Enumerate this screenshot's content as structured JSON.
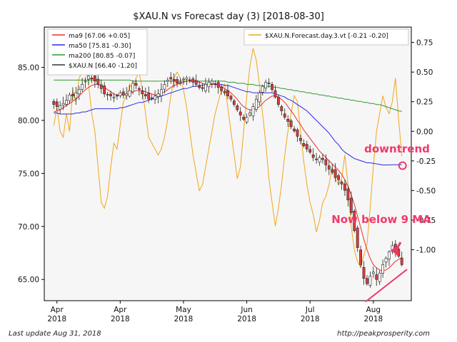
{
  "chart_data": {
    "type": "candlestick+line",
    "title": "$XAU.N vs Forecast day (3)  [2018-08-30]",
    "left_axis": {
      "ylim": [
        63.0,
        88.8
      ],
      "ticks": [
        65,
        70,
        75,
        80,
        85
      ],
      "tick_labels": [
        "65.00",
        "70.00",
        "75.00",
        "80.00",
        "85.00"
      ]
    },
    "right_axis": {
      "ylim": [
        -1.43,
        0.88
      ],
      "ticks": [
        0.75,
        0.5,
        0.25,
        0.0,
        -0.25,
        -0.5,
        -0.75,
        -1.0
      ],
      "tick_labels": [
        "0.75",
        "0.50",
        "0.25",
        "0.00",
        "-0.25",
        "-0.50",
        "-0.75",
        "-1.00"
      ]
    },
    "x_ticks": [
      {
        "label": "Apr\n2018",
        "t": 1
      },
      {
        "label": "Apr\n2018",
        "t": 21
      },
      {
        "label": "May\n2018",
        "t": 41
      },
      {
        "label": "Jun\n2018",
        "t": 61
      },
      {
        "label": "Jul\n2018",
        "t": 81
      },
      {
        "label": "Aug\n2018",
        "t": 101
      }
    ],
    "x_range": [
      -3,
      113
    ],
    "grid": false,
    "legend_left": {
      "placement": "top-left",
      "entries": [
        {
          "label": "ma9 [67.06 +0.05]",
          "color": "#e8302a"
        },
        {
          "label": "ma50 [75.81 -0.30]",
          "color": "#2a2ae8"
        },
        {
          "label": "ma200 [80.85 -0.07]",
          "color": "#2e9a2e"
        },
        {
          "label": "$XAU.N [66.40 -1.20]",
          "color": "#333333"
        }
      ]
    },
    "legend_right": {
      "placement": "top-right",
      "entries": [
        {
          "label": "$XAU.N.Forecast.day.3.vt [-0.21 -0.20]",
          "color": "#f2a51c"
        }
      ]
    },
    "closes": [
      81.5,
      81.3,
      81.4,
      81.6,
      81.9,
      82.4,
      82.3,
      82.6,
      82.9,
      83.4,
      83.7,
      84.2,
      83.9,
      83.7,
      83.4,
      83.0,
      82.5,
      82.4,
      82.3,
      82.2,
      82.3,
      82.6,
      82.4,
      82.5,
      82.8,
      83.5,
      83.3,
      83.0,
      82.5,
      82.3,
      82.0,
      82.1,
      82.3,
      82.5,
      82.9,
      83.4,
      83.8,
      83.9,
      83.7,
      83.5,
      83.6,
      83.9,
      84.0,
      83.8,
      83.6,
      83.4,
      83.1,
      83.0,
      83.4,
      83.6,
      83.7,
      83.4,
      83.1,
      82.8,
      82.6,
      82.3,
      82.0,
      81.5,
      81.0,
      80.5,
      80.1,
      80.3,
      80.7,
      81.3,
      82.0,
      82.6,
      83.2,
      83.6,
      83.5,
      82.9,
      82.2,
      81.5,
      80.9,
      80.3,
      79.9,
      79.4,
      79.0,
      78.5,
      78.1,
      77.6,
      77.3,
      77.0,
      76.5,
      76.3,
      76.5,
      76.3,
      75.8,
      75.4,
      75.1,
      74.6,
      74.4,
      74.0,
      73.4,
      72.5,
      71.3,
      69.6,
      68.0,
      66.4,
      65.1,
      64.6,
      65.3,
      65.7,
      65.0,
      65.6,
      66.4,
      67.0,
      67.6,
      68.2,
      67.6,
      67.2,
      66.4
    ],
    "ma9": [
      80.8,
      80.9,
      81.0,
      81.2,
      81.4,
      81.6,
      81.8,
      82.0,
      82.3,
      82.6,
      82.9,
      83.1,
      83.3,
      83.4,
      83.4,
      83.3,
      83.1,
      82.9,
      82.7,
      82.5,
      82.4,
      82.4,
      82.4,
      82.4,
      82.5,
      82.7,
      82.8,
      82.8,
      82.8,
      82.7,
      82.6,
      82.5,
      82.4,
      82.4,
      82.5,
      82.7,
      82.9,
      83.1,
      83.3,
      83.4,
      83.5,
      83.6,
      83.7,
      83.7,
      83.7,
      83.7,
      83.6,
      83.5,
      83.4,
      83.4,
      83.4,
      83.4,
      83.3,
      83.2,
      83.0,
      82.8,
      82.6,
      82.3,
      82.0,
      81.6,
      81.3,
      81.1,
      81.0,
      81.0,
      81.1,
      81.3,
      81.6,
      81.9,
      82.1,
      82.3,
      82.3,
      82.2,
      82.0,
      81.7,
      81.3,
      80.9,
      80.5,
      80.0,
      79.6,
      79.1,
      78.7,
      78.3,
      77.9,
      77.5,
      77.1,
      76.8,
      76.5,
      76.2,
      75.9,
      75.6,
      75.3,
      74.9,
      74.4,
      73.8,
      73.0,
      72.1,
      71.0,
      69.9,
      68.8,
      67.8,
      67.0,
      66.4,
      66.1,
      65.9,
      65.8,
      65.9,
      66.1,
      66.4,
      66.7,
      66.9,
      67.06
    ],
    "ma50": [
      80.7,
      80.7,
      80.6,
      80.6,
      80.6,
      80.6,
      80.6,
      80.7,
      80.7,
      80.8,
      80.8,
      80.9,
      81.0,
      81.1,
      81.1,
      81.1,
      81.1,
      81.1,
      81.1,
      81.1,
      81.1,
      81.2,
      81.2,
      81.3,
      81.4,
      81.5,
      81.6,
      81.7,
      81.7,
      81.8,
      81.9,
      82.0,
      82.1,
      82.2,
      82.3,
      82.4,
      82.5,
      82.6,
      82.7,
      82.8,
      82.9,
      83.0,
      83.0,
      83.1,
      83.2,
      83.2,
      83.3,
      83.3,
      83.4,
      83.4,
      83.4,
      83.4,
      83.4,
      83.4,
      83.3,
      83.3,
      83.2,
      83.1,
      83.0,
      82.9,
      82.8,
      82.7,
      82.7,
      82.6,
      82.6,
      82.6,
      82.6,
      82.6,
      82.6,
      82.6,
      82.5,
      82.4,
      82.3,
      82.2,
      82.0,
      81.9,
      81.7,
      81.5,
      81.3,
      81.1,
      80.9,
      80.6,
      80.3,
      80.0,
      79.7,
      79.4,
      79.1,
      78.8,
      78.4,
      78.0,
      77.7,
      77.3,
      77.0,
      76.8,
      76.6,
      76.4,
      76.3,
      76.2,
      76.1,
      76.0,
      76.0,
      75.95,
      75.9,
      75.85,
      75.8,
      75.8,
      75.8,
      75.81,
      75.81,
      75.81,
      75.81
    ],
    "ma200": [
      83.8,
      83.8,
      83.8,
      83.8,
      83.8,
      83.8,
      83.8,
      83.8,
      83.8,
      83.8,
      83.8,
      83.8,
      83.8,
      83.8,
      83.8,
      83.8,
      83.8,
      83.8,
      83.8,
      83.8,
      83.8,
      83.8,
      83.8,
      83.8,
      83.8,
      83.7,
      83.7,
      83.7,
      83.7,
      83.7,
      83.7,
      83.7,
      83.7,
      83.7,
      83.7,
      83.7,
      83.7,
      83.7,
      83.7,
      83.7,
      83.7,
      83.7,
      83.7,
      83.7,
      83.7,
      83.7,
      83.7,
      83.7,
      83.7,
      83.7,
      83.7,
      83.7,
      83.7,
      83.7,
      83.7,
      83.6,
      83.6,
      83.6,
      83.5,
      83.5,
      83.5,
      83.4,
      83.4,
      83.4,
      83.3,
      83.3,
      83.3,
      83.2,
      83.2,
      83.2,
      83.1,
      83.1,
      83.0,
      83.0,
      82.9,
      82.9,
      82.8,
      82.8,
      82.7,
      82.7,
      82.6,
      82.6,
      82.5,
      82.5,
      82.4,
      82.4,
      82.3,
      82.3,
      82.2,
      82.2,
      82.1,
      82.1,
      82.0,
      82.0,
      81.9,
      81.9,
      81.8,
      81.8,
      81.7,
      81.7,
      81.6,
      81.6,
      81.5,
      81.5,
      81.4,
      81.3,
      81.2,
      81.1,
      81.0,
      80.9,
      80.85
    ],
    "forecast": [
      0.05,
      0.2,
      0.0,
      -0.05,
      0.15,
      0.0,
      0.35,
      0.25,
      0.45,
      0.5,
      0.55,
      0.4,
      0.15,
      0.0,
      -0.3,
      -0.6,
      -0.65,
      -0.55,
      -0.3,
      -0.1,
      -0.15,
      0.05,
      0.25,
      0.3,
      0.4,
      0.35,
      0.45,
      0.5,
      0.35,
      0.15,
      -0.05,
      -0.1,
      -0.15,
      -0.2,
      -0.15,
      -0.05,
      0.1,
      0.3,
      0.45,
      0.5,
      0.45,
      0.35,
      0.2,
      0.0,
      -0.2,
      -0.35,
      -0.5,
      -0.45,
      -0.3,
      -0.15,
      0.0,
      0.15,
      0.25,
      0.35,
      0.4,
      0.2,
      0.0,
      -0.2,
      -0.4,
      -0.3,
      0.0,
      0.3,
      0.55,
      0.7,
      0.6,
      0.4,
      0.15,
      -0.1,
      -0.4,
      -0.6,
      -0.8,
      -0.65,
      -0.45,
      -0.2,
      0.0,
      0.15,
      0.3,
      0.25,
      0.0,
      -0.25,
      -0.45,
      -0.6,
      -0.7,
      -0.85,
      -0.75,
      -0.6,
      -0.55,
      -0.45,
      -0.3,
      -0.4,
      -0.45,
      -0.4,
      -0.2,
      -0.45,
      -0.8,
      -1.0,
      -1.1,
      -1.15,
      -1.05,
      -0.95,
      -0.65,
      -0.3,
      0.0,
      0.15,
      0.3,
      0.2,
      0.15,
      0.25,
      0.45,
      0.1,
      -0.21
    ]
  },
  "annotations": {
    "downtrend_label": "downtrend",
    "below_ma_label": "Now below 9 MA",
    "accent_color": "#f0386b"
  },
  "footer": {
    "left": "Last update Aug 31, 2018",
    "right": "http://peakprosperity.com"
  }
}
